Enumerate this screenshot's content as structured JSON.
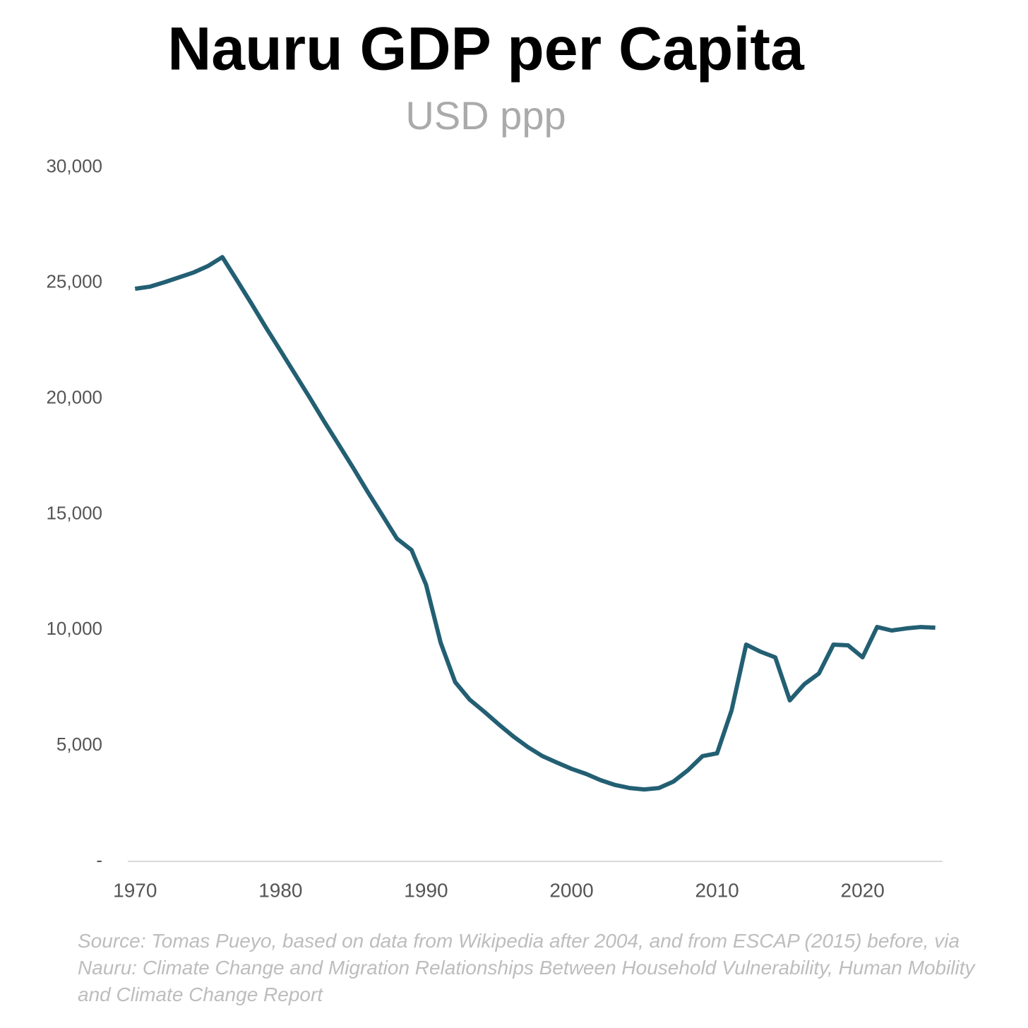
{
  "chart_data": {
    "type": "line",
    "title": "Nauru GDP per Capita",
    "subtitle": "USD ppp",
    "source": "Source: Tomas Pueyo, based on data from Wikipedia after 2004, and from ESCAP (2015) before, via Nauru: Climate Change and Migration Relationships Between Household Vulnerability, Human Mobility and Climate Change Report",
    "x": [
      1970,
      1971,
      1972,
      1973,
      1974,
      1975,
      1976,
      1977,
      1978,
      1979,
      1980,
      1981,
      1982,
      1983,
      1984,
      1985,
      1986,
      1987,
      1988,
      1989,
      1990,
      1991,
      1992,
      1993,
      1994,
      1995,
      1996,
      1997,
      1998,
      1999,
      2000,
      2001,
      2002,
      2003,
      2004,
      2005,
      2006,
      2007,
      2008,
      2009,
      2010,
      2011,
      2012,
      2013,
      2014,
      2015,
      2016,
      2017,
      2018,
      2019,
      2020,
      2021,
      2022,
      2023,
      2024,
      2025
    ],
    "series": [
      {
        "name": "GDP per capita",
        "color": "#235f73",
        "values": [
          24750,
          24840,
          25030,
          25240,
          25450,
          25730,
          26120,
          25120,
          24110,
          23070,
          22070,
          21060,
          20050,
          19010,
          18010,
          17000,
          15960,
          14960,
          13950,
          13460,
          11960,
          9460,
          7750,
          6990,
          6470,
          5920,
          5400,
          4940,
          4550,
          4270,
          4000,
          3780,
          3510,
          3300,
          3170,
          3110,
          3170,
          3450,
          3940,
          4550,
          4670,
          6530,
          9370,
          9060,
          8820,
          6960,
          7660,
          8120,
          9370,
          9340,
          8820,
          10130,
          9980,
          10070,
          10130,
          10100
        ]
      }
    ],
    "xlim": [
      1969.5,
      2025.5
    ],
    "xticks": [
      1970,
      1980,
      1990,
      2000,
      2010,
      2020
    ],
    "ylim": [
      0,
      30000
    ],
    "yticks": [
      {
        "value": 0,
        "label": "-"
      },
      {
        "value": 5000,
        "label": "5,000"
      },
      {
        "value": 10000,
        "label": "10,000"
      },
      {
        "value": 15000,
        "label": "15,000"
      },
      {
        "value": 20000,
        "label": "20,000"
      },
      {
        "value": 25000,
        "label": "25,000"
      },
      {
        "value": 30000,
        "label": "30,000"
      }
    ],
    "grid": false
  }
}
